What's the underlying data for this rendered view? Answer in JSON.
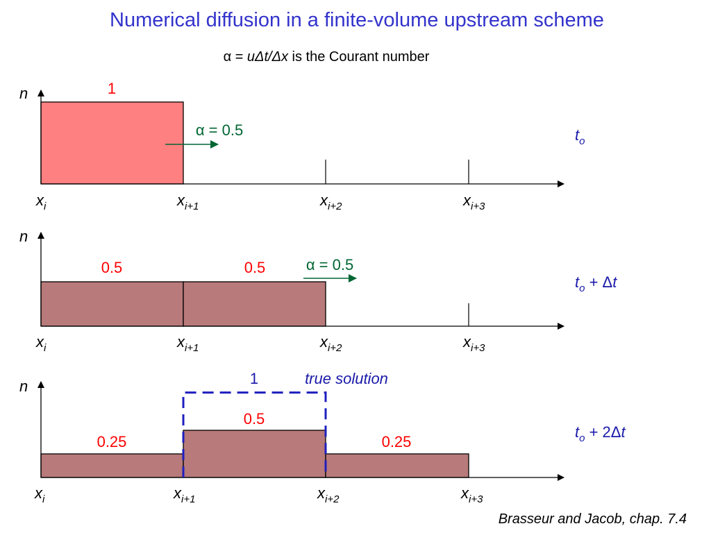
{
  "title": "Numerical diffusion in a finite-volume upstream scheme",
  "subtitle": {
    "alpha_symbol": "α = ",
    "formula": "uΔt/Δx",
    "rest": " is the Courant number"
  },
  "colors": {
    "title": "#3333cc",
    "red_text": "#ff0000",
    "green": "#006633",
    "blue_text": "#1a1aaa",
    "dashed": "#1f1fbf",
    "bar_initial": "#ff8080",
    "bar_diffused": "#b87a7a"
  },
  "axis_label": "n",
  "x_labels": [
    {
      "base": "x",
      "sub": "i"
    },
    {
      "base": "x",
      "sub": "i+1"
    },
    {
      "base": "x",
      "sub": "i+2"
    },
    {
      "base": "x",
      "sub": "i+3"
    }
  ],
  "chart_data": [
    {
      "type": "bar",
      "cells": [
        "xi",
        "xi+1",
        "xi+2"
      ],
      "values": [
        1,
        0,
        0
      ],
      "value_labels": [
        "1",
        "",
        ""
      ],
      "courant_label": "α = 0.5",
      "time_label": {
        "main": "t",
        "sub": "o",
        "rest": ""
      }
    },
    {
      "type": "bar",
      "cells": [
        "xi",
        "xi+1",
        "xi+2"
      ],
      "values": [
        0.5,
        0.5,
        0
      ],
      "value_labels": [
        "0.5",
        "0.5",
        ""
      ],
      "courant_label": "α = 0.5",
      "time_label": {
        "main": "t",
        "sub": "o",
        "rest": " + Δ",
        "rest_italic": "t"
      }
    },
    {
      "type": "bar",
      "cells": [
        "xi",
        "xi+1",
        "xi+2"
      ],
      "values": [
        0.25,
        0.5,
        0.25
      ],
      "value_labels": [
        "0.25",
        "0.5",
        "0.25"
      ],
      "true_solution": {
        "cell": "xi+1",
        "value": 1,
        "value_label": "1",
        "label": "true solution"
      },
      "time_label": {
        "main": "t",
        "sub": "o",
        "rest": " + 2Δ",
        "rest_italic": "t"
      }
    }
  ],
  "citation": "Brasseur and Jacob, chap. 7.4"
}
